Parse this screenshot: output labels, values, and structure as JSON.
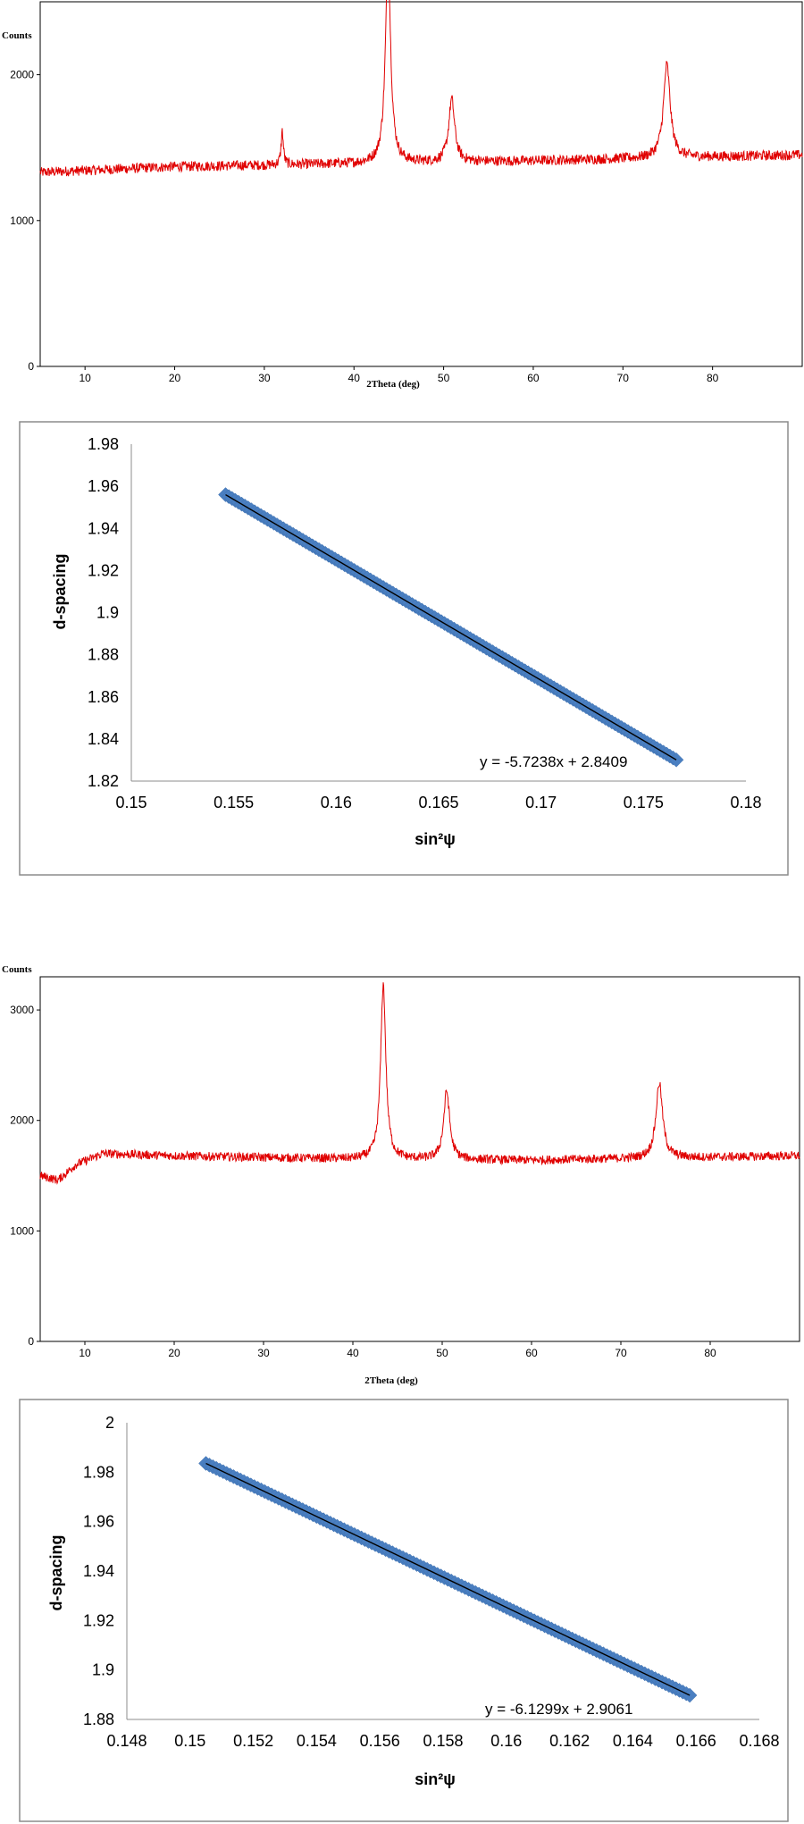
{
  "chart_data": [
    {
      "type": "line",
      "ylabel": "Counts",
      "xlabel": "2Theta (deg)",
      "xlim": [
        5,
        90
      ],
      "ylim": [
        0,
        2500
      ],
      "xticks": [
        10,
        20,
        30,
        40,
        50,
        60,
        70,
        80
      ],
      "yticks": [
        0,
        1000,
        2000
      ],
      "series": [
        {
          "color": "#e00000",
          "baseline": [
            [
              5,
              1330
            ],
            [
              20,
              1370
            ],
            [
              40,
              1390
            ],
            [
              60,
              1410
            ],
            [
              90,
              1450
            ]
          ],
          "noise": 35,
          "peaks": [
            {
              "x": 32.0,
              "height": 230,
              "width": 0.15
            },
            {
              "x": 43.8,
              "height": 1400,
              "width": 0.35
            },
            {
              "x": 50.9,
              "height": 430,
              "width": 0.4
            },
            {
              "x": 74.9,
              "height": 640,
              "width": 0.45
            }
          ]
        }
      ]
    },
    {
      "type": "scatter",
      "xlabel": "sin²ψ",
      "ylabel": "d-spacing",
      "xlim": [
        0.15,
        0.18
      ],
      "ylim": [
        1.82,
        1.98
      ],
      "xticks": [
        "0.15",
        "0.155",
        "0.16",
        "0.165",
        "0.17",
        "0.175",
        "0.18"
      ],
      "yticks": [
        "1.82",
        "1.84",
        "1.86",
        "1.88",
        "1.9",
        "1.92",
        "1.94",
        "1.96",
        "1.98"
      ],
      "points_x_range": [
        0.1546,
        0.1766
      ],
      "slope": -5.7238,
      "intercept": 2.8409,
      "equation": "y = -5.7238x + 2.8409",
      "marker_color": "#4a7fc1",
      "trendline_color": "#000000"
    },
    {
      "type": "line",
      "ylabel": "Counts",
      "xlabel": "2Theta (deg)",
      "xlim": [
        5,
        90
      ],
      "ylim": [
        0,
        3300
      ],
      "xticks": [
        10,
        20,
        30,
        40,
        50,
        60,
        70,
        80
      ],
      "yticks": [
        0,
        1000,
        2000,
        3000
      ],
      "series": [
        {
          "color": "#e00000",
          "baseline": [
            [
              5,
              1500
            ],
            [
              7,
              1460
            ],
            [
              9,
              1600
            ],
            [
              12,
              1700
            ],
            [
              20,
              1680
            ],
            [
              40,
              1650
            ],
            [
              60,
              1640
            ],
            [
              90,
              1680
            ]
          ],
          "noise": 40,
          "peaks": [
            {
              "x": 43.4,
              "height": 1580,
              "width": 0.35
            },
            {
              "x": 50.5,
              "height": 620,
              "width": 0.4
            },
            {
              "x": 74.3,
              "height": 680,
              "width": 0.45
            }
          ]
        }
      ]
    },
    {
      "type": "scatter",
      "xlabel": "sin²ψ",
      "ylabel": "d-spacing",
      "xlim": [
        0.148,
        0.168
      ],
      "ylim": [
        1.88,
        2.0
      ],
      "xticks": [
        "0.148",
        "0.15",
        "0.152",
        "0.154",
        "0.156",
        "0.158",
        "0.16",
        "0.162",
        "0.164",
        "0.166",
        "0.168"
      ],
      "yticks": [
        "1.88",
        "1.9",
        "1.92",
        "1.94",
        "1.96",
        "1.98",
        "2"
      ],
      "points_x_range": [
        0.1505,
        0.1658
      ],
      "slope": -6.1299,
      "intercept": 2.9061,
      "equation": "y = -6.1299x + 2.9061",
      "marker_color": "#4a7fc1",
      "trendline_color": "#000000"
    }
  ]
}
